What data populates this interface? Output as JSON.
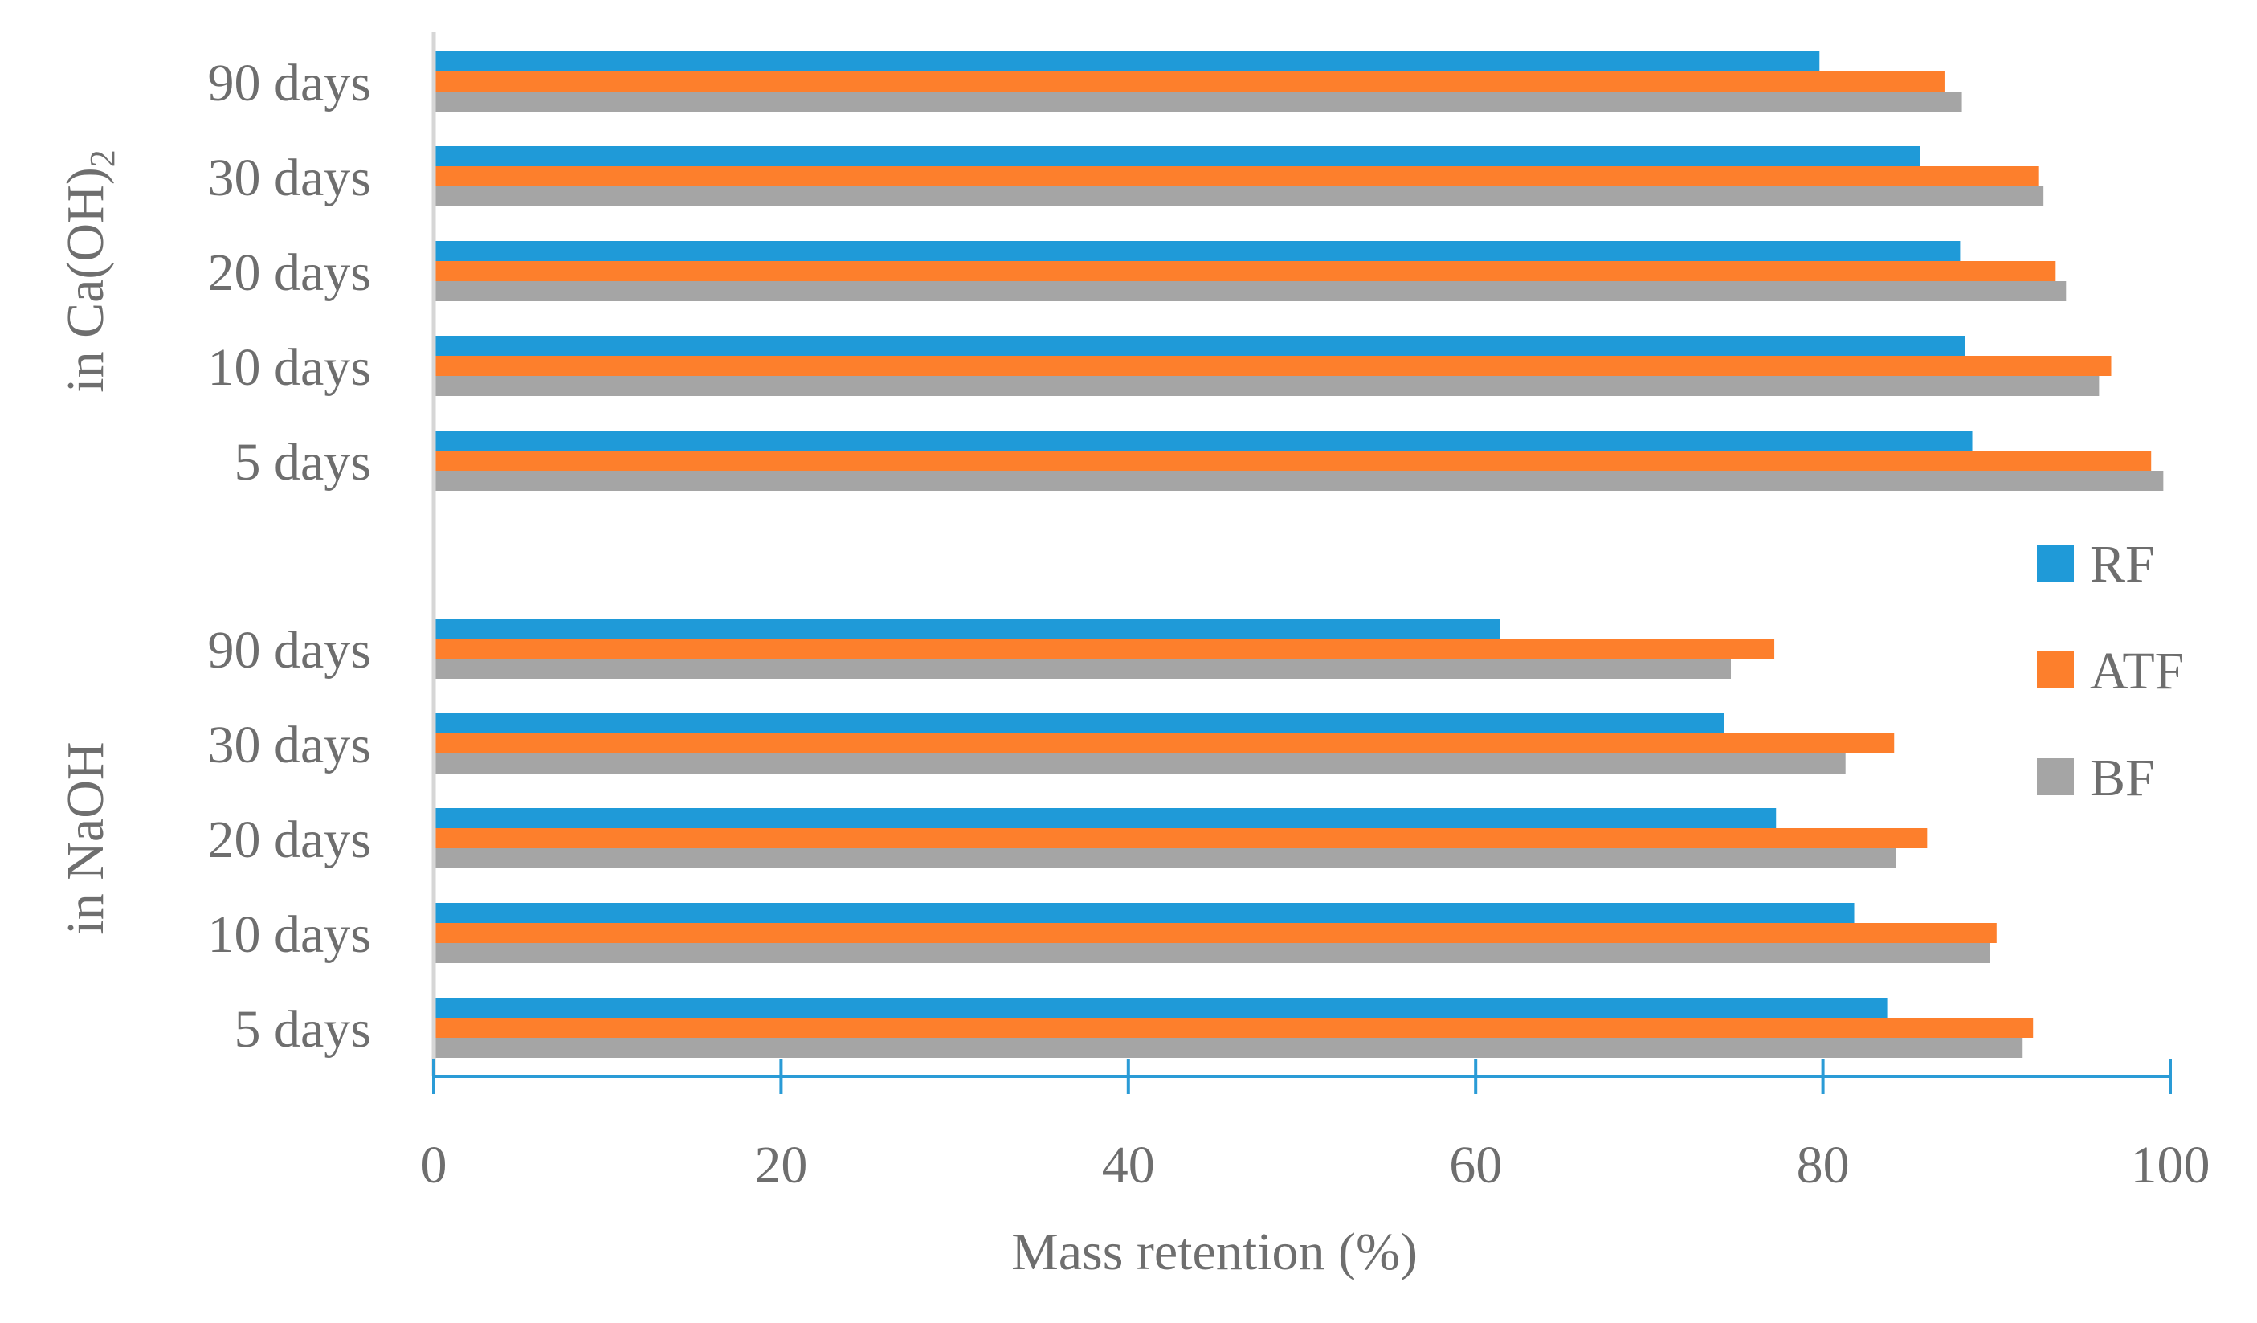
{
  "chart_data": {
    "type": "bar",
    "orientation": "horizontal",
    "xlabel": "Mass retention (%)",
    "xlim": [
      0,
      100
    ],
    "xticks": [
      "0",
      "20",
      "40",
      "60",
      "80",
      "100"
    ],
    "grid": false,
    "legend_position": "right",
    "groups": [
      {
        "label": "in Ca(OH)",
        "label_subscript": "2",
        "categories": [
          "90 days",
          "30 days",
          "20 days",
          "10 days",
          "5 days"
        ],
        "series": [
          {
            "name": "RF",
            "values": [
              79.8,
              85.6,
              87.9,
              88.2,
              88.6
            ]
          },
          {
            "name": "ATF",
            "values": [
              87.0,
              92.4,
              93.4,
              96.6,
              98.9
            ]
          },
          {
            "name": "BF",
            "values": [
              88.0,
              92.7,
              94.0,
              95.9,
              99.6
            ]
          }
        ]
      },
      {
        "label": "in NaOH",
        "label_subscript": "",
        "categories": [
          "90 days",
          "30 days",
          "20 days",
          "10 days",
          "5 days"
        ],
        "series": [
          {
            "name": "RF",
            "values": [
              61.4,
              74.3,
              77.3,
              81.8,
              83.7
            ]
          },
          {
            "name": "ATF",
            "values": [
              77.2,
              84.1,
              86.0,
              90.0,
              92.1
            ]
          },
          {
            "name": "BF",
            "values": [
              74.7,
              81.3,
              84.2,
              89.6,
              91.5
            ]
          }
        ]
      }
    ],
    "colors": {
      "RF": "#1f9ad8",
      "ATF": "#fd7f2c",
      "BF": "#a5a5a5",
      "axis": "#2a9bd6",
      "text": "#6e6e6e"
    }
  }
}
